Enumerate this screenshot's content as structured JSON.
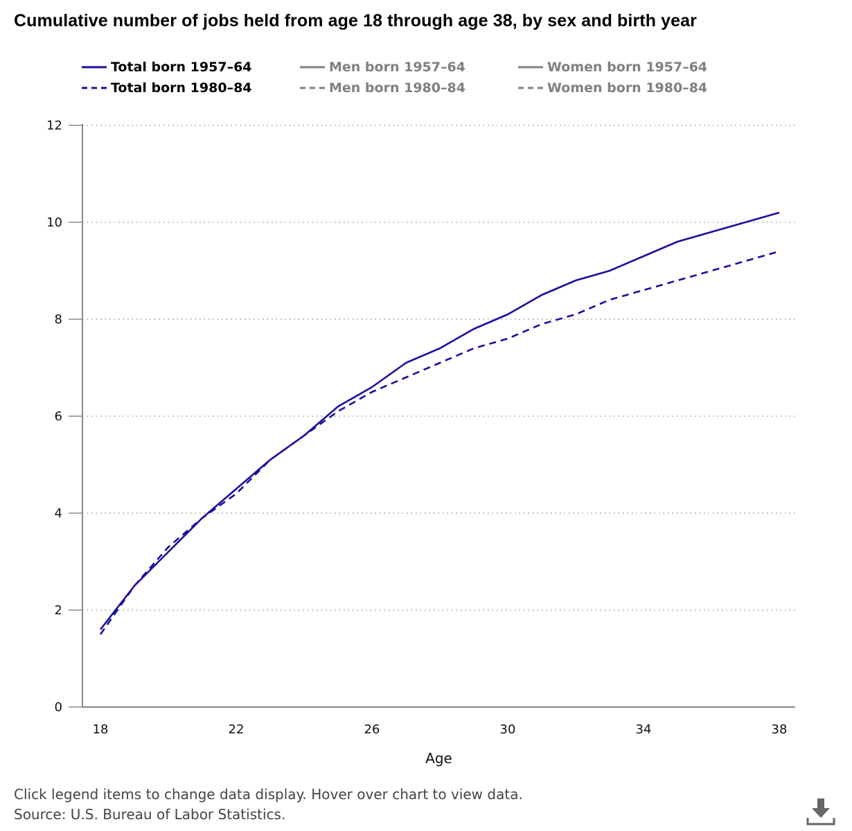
{
  "title": "Cumulative number of jobs held from age 18 through age 38, by sex and birth year",
  "legend": [
    {
      "label": "Total born 1957–64",
      "active": true,
      "style": "solid",
      "color": "#1a0f9e"
    },
    {
      "label": "Men born 1957–64",
      "active": false,
      "style": "solid",
      "color": "#808080"
    },
    {
      "label": "Women born 1957–64",
      "active": false,
      "style": "solid",
      "color": "#808080"
    },
    {
      "label": "Total born 1980–84",
      "active": true,
      "style": "dashed",
      "color": "#1a0f9e"
    },
    {
      "label": "Men born 1980–84",
      "active": false,
      "style": "dashed",
      "color": "#808080"
    },
    {
      "label": "Women born 1980–84",
      "active": false,
      "style": "dashed",
      "color": "#808080"
    }
  ],
  "chart_data": {
    "type": "line",
    "title": "Cumulative number of jobs held from age 18 through age 38, by sex and birth year",
    "xlabel": "Age",
    "ylabel": "",
    "xlim": [
      18,
      38
    ],
    "ylim": [
      0,
      12
    ],
    "x_ticks": [
      18,
      22,
      26,
      30,
      34,
      38
    ],
    "y_ticks": [
      0,
      2,
      4,
      6,
      8,
      10,
      12
    ],
    "grid": "horizontal dotted",
    "legend_position": "top",
    "series": [
      {
        "name": "Total born 1957–64",
        "style": "solid",
        "color": "#1a0f9e",
        "x": [
          18,
          19,
          20,
          21,
          22,
          23,
          24,
          25,
          26,
          27,
          28,
          29,
          30,
          31,
          32,
          33,
          34,
          35,
          36,
          37,
          38
        ],
        "values": [
          1.6,
          2.5,
          3.2,
          3.9,
          4.5,
          5.1,
          5.6,
          6.2,
          6.6,
          7.1,
          7.4,
          7.8,
          8.1,
          8.5,
          8.8,
          9.0,
          9.3,
          9.6,
          9.8,
          10.0,
          10.2
        ]
      },
      {
        "name": "Total born 1980–84",
        "style": "dashed",
        "color": "#1a0f9e",
        "x": [
          18,
          19,
          20,
          21,
          22,
          23,
          24,
          25,
          26,
          27,
          28,
          29,
          30,
          31,
          32,
          33,
          34,
          35,
          36,
          37,
          38
        ],
        "values": [
          1.5,
          2.5,
          3.3,
          3.9,
          4.4,
          5.1,
          5.6,
          6.1,
          6.5,
          6.8,
          7.1,
          7.4,
          7.6,
          7.9,
          8.1,
          8.4,
          8.6,
          8.8,
          9.0,
          9.2,
          9.4
        ]
      }
    ]
  },
  "footer": {
    "instructions": "Click legend items to change data display. Hover over chart to view data.",
    "source": "Source: U.S. Bureau of Labor Statistics."
  },
  "icons": {
    "download": "download-icon"
  }
}
